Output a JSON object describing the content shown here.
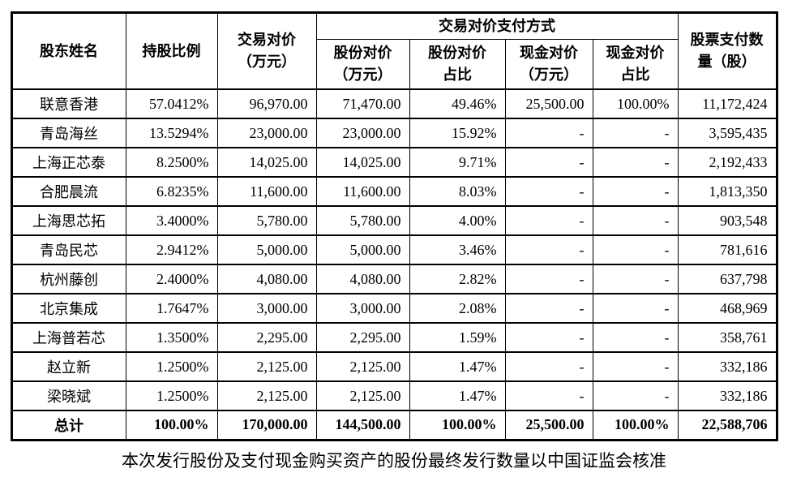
{
  "table": {
    "headers": {
      "shareholder": "股东姓名",
      "holding_ratio": "持股比例",
      "transaction_price": "交易对价\n（万元）",
      "payment_method_group": "交易对价支付方式",
      "share_price": "股份对价\n（万元）",
      "share_ratio": "股份对价\n占比",
      "cash_price": "现金对价\n（万元）",
      "cash_ratio": "现金对价\n占比",
      "shares_paid": "股票支付数\n量（股）"
    },
    "rows": [
      [
        "联意香港",
        "57.0412%",
        "96,970.00",
        "71,470.00",
        "49.46%",
        "25,500.00",
        "100.00%",
        "11,172,424"
      ],
      [
        "青岛海丝",
        "13.5294%",
        "23,000.00",
        "23,000.00",
        "15.92%",
        "-",
        "-",
        "3,595,435"
      ],
      [
        "上海正芯泰",
        "8.2500%",
        "14,025.00",
        "14,025.00",
        "9.71%",
        "-",
        "-",
        "2,192,433"
      ],
      [
        "合肥晨流",
        "6.8235%",
        "11,600.00",
        "11,600.00",
        "8.03%",
        "-",
        "-",
        "1,813,350"
      ],
      [
        "上海思芯拓",
        "3.4000%",
        "5,780.00",
        "5,780.00",
        "4.00%",
        "-",
        "-",
        "903,548"
      ],
      [
        "青岛民芯",
        "2.9412%",
        "5,000.00",
        "5,000.00",
        "3.46%",
        "-",
        "-",
        "781,616"
      ],
      [
        "杭州藤创",
        "2.4000%",
        "4,080.00",
        "4,080.00",
        "2.82%",
        "-",
        "-",
        "637,798"
      ],
      [
        "北京集成",
        "1.7647%",
        "3,000.00",
        "3,000.00",
        "2.08%",
        "-",
        "-",
        "468,969"
      ],
      [
        "上海普若芯",
        "1.3500%",
        "2,295.00",
        "2,295.00",
        "1.59%",
        "-",
        "-",
        "358,761"
      ],
      [
        "赵立新",
        "1.2500%",
        "2,125.00",
        "2,125.00",
        "1.47%",
        "-",
        "-",
        "332,186"
      ],
      [
        "梁晓斌",
        "1.2500%",
        "2,125.00",
        "2,125.00",
        "1.47%",
        "-",
        "-",
        "332,186"
      ]
    ],
    "total_rows": [
      [
        "总计",
        "100.00%",
        "170,000.00",
        "144,500.00",
        "100.00%",
        "25,500.00",
        "100.00%",
        "22,588,706"
      ]
    ]
  },
  "caption": "本次发行股份及支付现金购买资产的股份最终发行数量以中国证监会核准"
}
